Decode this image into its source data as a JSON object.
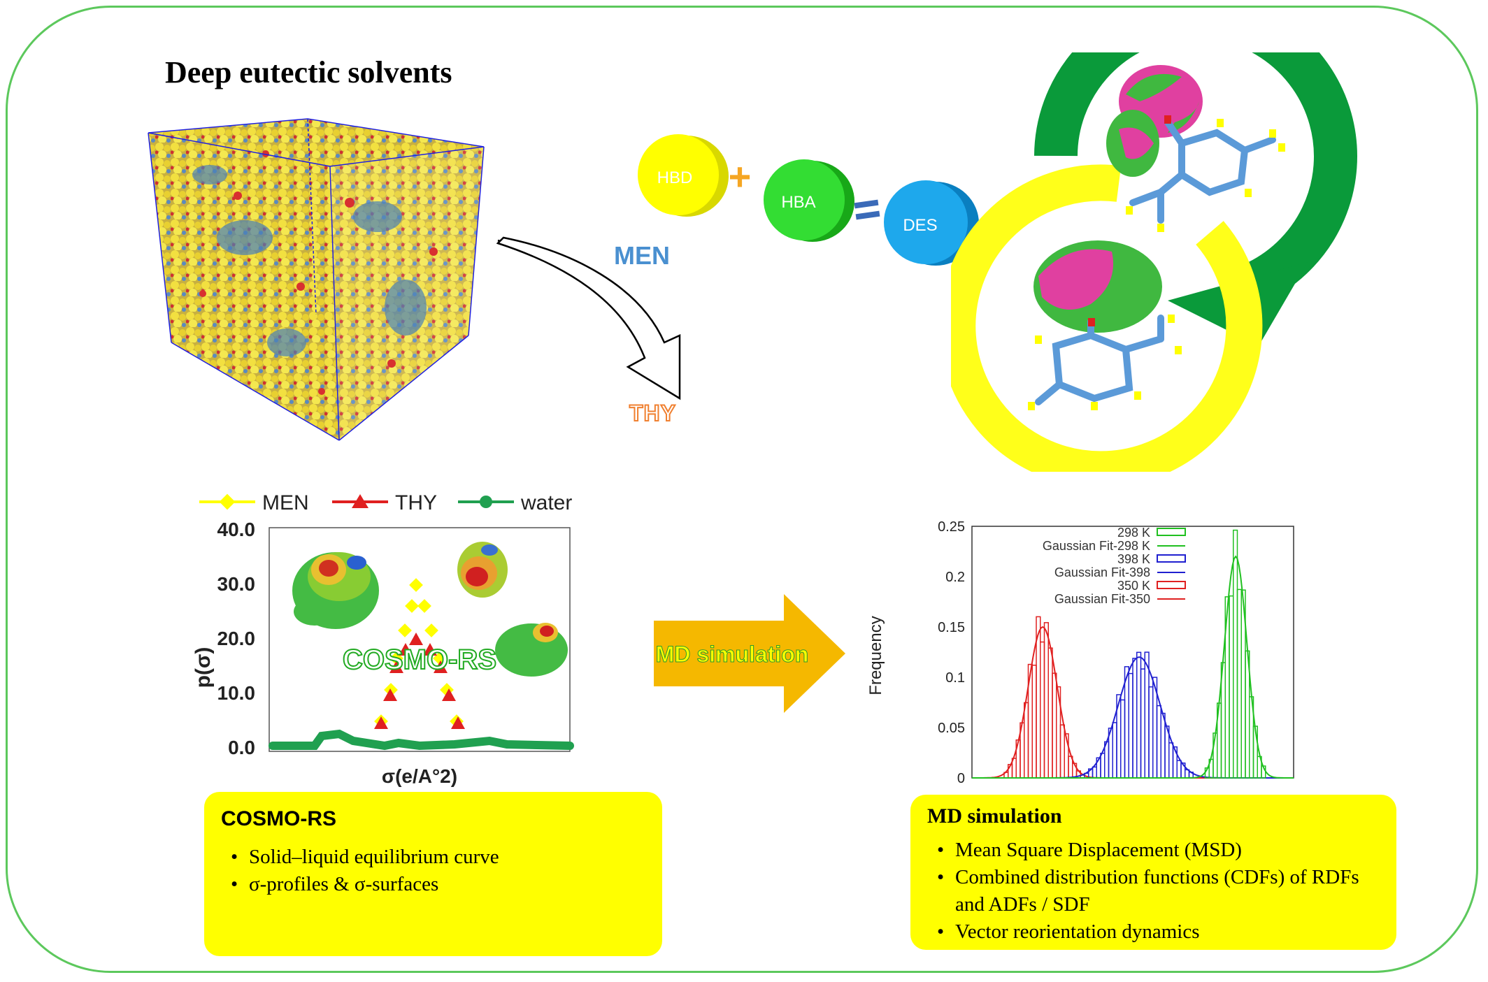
{
  "title": "Deep eutectic solvents",
  "pathway": {
    "hbd": "HBD",
    "hba": "HBA",
    "des": "DES",
    "plus": "+",
    "equals": "=",
    "men": "MEN",
    "thy": "THY"
  },
  "sigma_chart": {
    "legend": [
      "MEN",
      "THY",
      "water"
    ],
    "xlabel": "σ(e/A°2)",
    "ylabel": "p(σ)",
    "yticks": [
      "40.0",
      "30.0",
      "20.0",
      "10.0",
      "0.0"
    ],
    "overlay": "COSMO-RS"
  },
  "arrow_label": "MD simulation",
  "chart_data": {
    "type": "bar",
    "ylabel": "Frequency",
    "ylim": [
      0,
      0.25
    ],
    "yticks": [
      "0.25",
      "0.2",
      "0.15",
      "0.1",
      "0.05",
      "0"
    ],
    "legend": [
      "298 K",
      "Gaussian Fit-298 K",
      "398 K",
      "Gaussian Fit-398",
      "350 K",
      "Gaussian Fit-350"
    ],
    "series": [
      {
        "name": "350 K",
        "color": "#e02020",
        "peak": 0.15,
        "center": 0.22,
        "width": 0.045
      },
      {
        "name": "398 K",
        "color": "#2020d0",
        "peak": 0.12,
        "center": 0.52,
        "width": 0.065
      },
      {
        "name": "298 K",
        "color": "#20c020",
        "peak": 0.22,
        "center": 0.82,
        "width": 0.035
      }
    ]
  },
  "cosmo_box": {
    "title": "COSMO-RS",
    "items": [
      "Solid–liquid equilibrium curve",
      "σ-profiles & σ-surfaces"
    ]
  },
  "md_box": {
    "title": "MD simulation",
    "items": [
      "Mean Square Displacement (MSD)",
      "Combined distribution functions (CDFs) of RDFs and ADFs / SDF",
      "Vector reorientation dynamics"
    ]
  },
  "colors": {
    "frame": "#5cc85c",
    "box": "#ffff00",
    "men": "#ffff00",
    "thy": "#e02020",
    "water": "#20a050"
  }
}
